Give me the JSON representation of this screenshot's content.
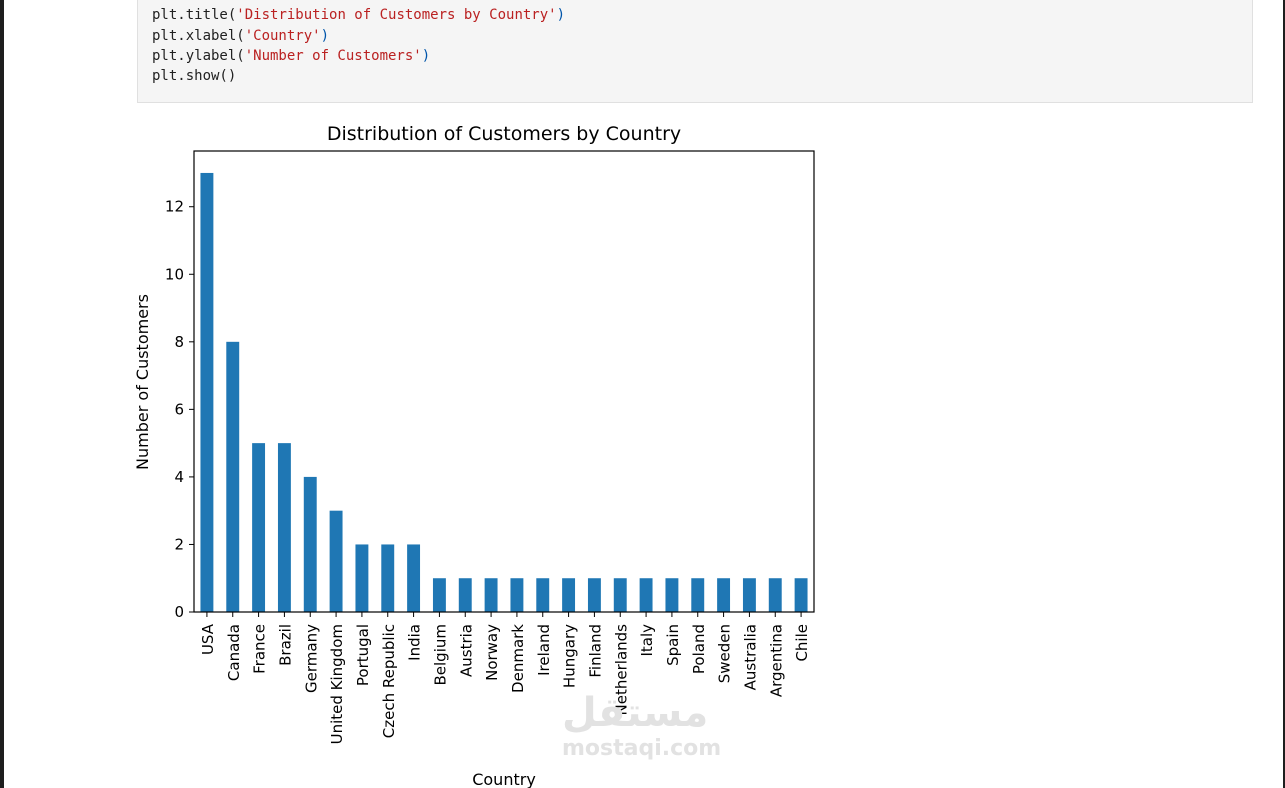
{
  "code": {
    "lines": [
      {
        "pre": "plt.title(",
        "arg": "'Distribution of Customers by Country'",
        "post": ")"
      },
      {
        "pre": "plt.xlabel(",
        "arg": "'Country'",
        "post": ")"
      },
      {
        "pre": "plt.ylabel(",
        "arg": "'Number of Customers'",
        "post": ")"
      },
      {
        "pre": "plt.show()",
        "arg": "",
        "post": ""
      }
    ]
  },
  "chart_data": {
    "type": "bar",
    "title": "Distribution of Customers by Country",
    "xlabel": "Country",
    "ylabel": "Number of Customers",
    "categories": [
      "USA",
      "Canada",
      "France",
      "Brazil",
      "Germany",
      "United Kingdom",
      "Portugal",
      "Czech Republic",
      "India",
      "Belgium",
      "Austria",
      "Norway",
      "Denmark",
      "Ireland",
      "Hungary",
      "Finland",
      "Netherlands",
      "Italy",
      "Spain",
      "Poland",
      "Sweden",
      "Australia",
      "Argentina",
      "Chile"
    ],
    "values": [
      13,
      8,
      5,
      5,
      4,
      3,
      2,
      2,
      2,
      1,
      1,
      1,
      1,
      1,
      1,
      1,
      1,
      1,
      1,
      1,
      1,
      1,
      1,
      1
    ],
    "ylim": [
      0,
      13.65
    ],
    "yticks": [
      0,
      2,
      4,
      6,
      8,
      10,
      12
    ],
    "bar_color": "#1f77b4",
    "grid": false,
    "legend": "none"
  },
  "watermark": {
    "logo": "مستقل",
    "url": "mostaqi.com"
  }
}
